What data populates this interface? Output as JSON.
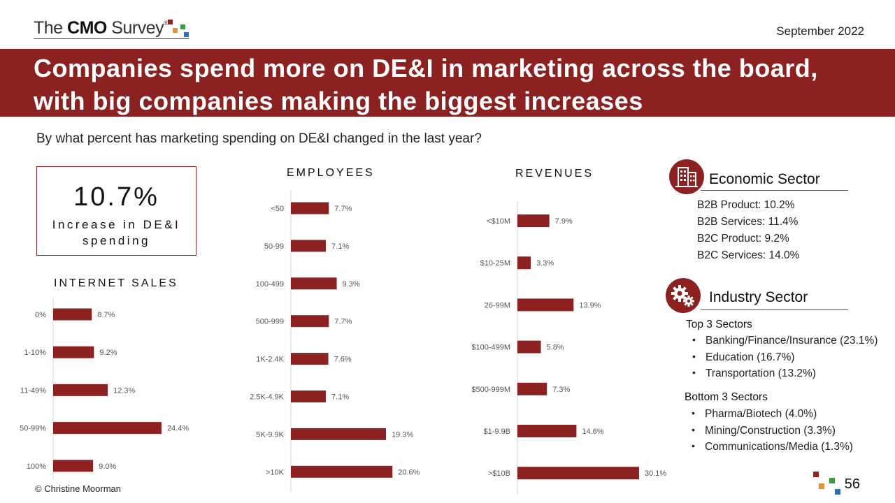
{
  "header": {
    "logo_prefix": "The ",
    "logo_bold": "CMO",
    "logo_suffix": " Survey",
    "logo_reg": "®",
    "date": "September 2022",
    "title": "Companies spend more on DE&I in marketing across the board, with big companies making the biggest increases"
  },
  "question": "By what percent has marketing spending on DE&I changed in the last year?",
  "kpi": {
    "value": "10.7%",
    "label": "Increase in DE&I spending"
  },
  "colors": {
    "accent": "#8b2121",
    "logo_red": "#8b2525",
    "logo_orange": "#e2913d",
    "logo_green": "#3a9a48",
    "logo_blue": "#2f6fb3"
  },
  "chart_data": [
    {
      "type": "bar",
      "orientation": "horizontal",
      "title": "INTERNET SALES",
      "categories": [
        "0%",
        "1-10%",
        "11-49%",
        "50-99%",
        "100%"
      ],
      "values": [
        8.7,
        9.2,
        12.3,
        24.4,
        9.0
      ],
      "value_labels": [
        "8.7%",
        "9.2%",
        "12.3%",
        "24.4%",
        "9.0%"
      ],
      "color": "#8b2121"
    },
    {
      "type": "bar",
      "orientation": "horizontal",
      "title": "EMPLOYEES",
      "categories": [
        "<50",
        "50-99",
        "100-499",
        "500-999",
        "1K-2.4K",
        "2.5K-4.9K",
        "5K-9.9K",
        ">10K"
      ],
      "values": [
        7.7,
        7.1,
        9.3,
        7.7,
        7.6,
        7.1,
        19.3,
        20.6
      ],
      "value_labels": [
        "7.7%",
        "7.1%",
        "9.3%",
        "7.7%",
        "7.6%",
        "7.1%",
        "19.3%",
        "20.6%"
      ],
      "color": "#8b2121"
    },
    {
      "type": "bar",
      "orientation": "horizontal",
      "title": "REVENUES",
      "categories": [
        "<$10M",
        "$10-25M",
        "26-99M",
        "$100-499M",
        "$500-999M",
        "$1-9.9B",
        ">$10B"
      ],
      "values": [
        7.9,
        3.3,
        13.9,
        5.8,
        7.3,
        14.6,
        30.1
      ],
      "value_labels": [
        "7.9%",
        "3.3%",
        "13.9%",
        "5.8%",
        "7.3%",
        "14.6%",
        "30.1%"
      ],
      "color": "#8b2121"
    }
  ],
  "economic": {
    "icon": "building-icon",
    "title": "Economic Sector",
    "items": [
      "B2B Product: 10.2%",
      "B2B Services: 11.4%",
      "B2C Product:  9.2%",
      "B2C Services: 14.0%"
    ]
  },
  "industry": {
    "icon": "gears-icon",
    "title": "Industry Sector",
    "top_title": "Top 3 Sectors",
    "top": [
      "Banking/Finance/Insurance (23.1%)",
      "Education (16.7%)",
      "Transportation (13.2%)"
    ],
    "bottom_title": "Bottom 3 Sectors",
    "bottom": [
      "Pharma/Biotech (4.0%)",
      "Mining/Construction (3.3%)",
      "Communications/Media (1.3%)"
    ]
  },
  "footer": {
    "copyright": "© Christine Moorman",
    "page": "56"
  }
}
